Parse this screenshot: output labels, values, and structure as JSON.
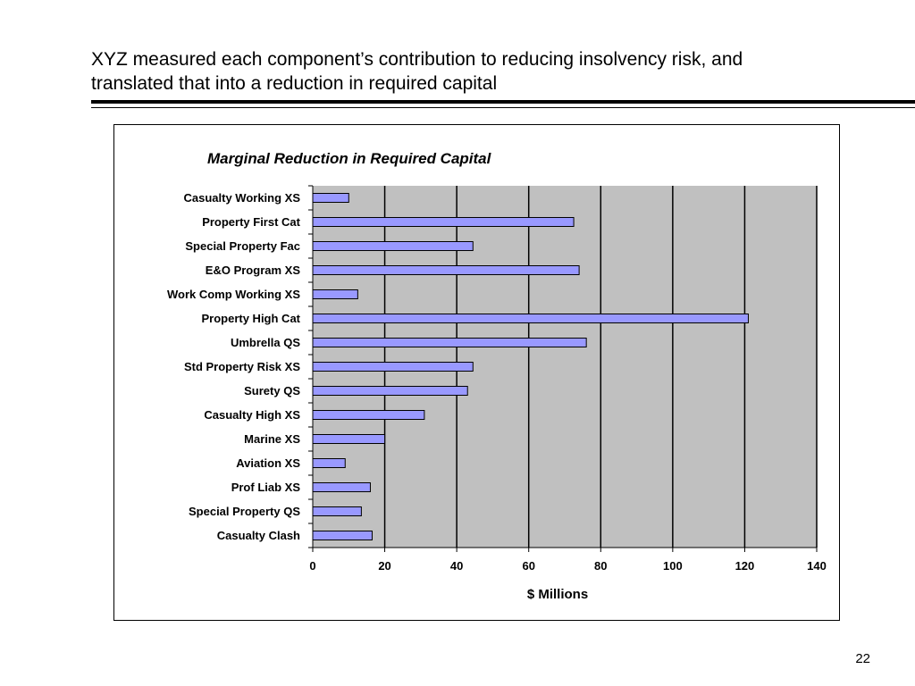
{
  "slide": {
    "title_line1": "XYZ measured each component’s contribution to reducing insolvency risk, and",
    "title_line2": "translated that into a reduction in required capital",
    "page_number": "22"
  },
  "colors": {
    "plot_background": "#c0c0c0",
    "bar_fill": "#9999ff",
    "bar_stroke": "#000000",
    "gridline": "#000000"
  },
  "chart_data": {
    "type": "bar",
    "orientation": "horizontal",
    "title": "Marginal Reduction in Required Capital",
    "xlabel": "$ Millions",
    "ylabel": "",
    "categories": [
      "Casualty Working XS",
      "Property First Cat",
      "Special Property Fac",
      "E&O Program XS",
      "Work Comp Working XS",
      "Property High Cat",
      "Umbrella QS",
      "Std Property Risk XS",
      "Surety QS",
      "Casualty High XS",
      "Marine XS",
      "Aviation XS",
      "Prof Liab XS",
      "Special Property QS",
      "Casualty Clash"
    ],
    "values": [
      10,
      72.5,
      44.5,
      74,
      12.5,
      121,
      76,
      44.5,
      43,
      31,
      20,
      9,
      16,
      13.5,
      16.5
    ],
    "xlim": [
      0,
      140
    ],
    "xticks": [
      0,
      20,
      40,
      60,
      80,
      100,
      120,
      140
    ],
    "grid": "vertical major gridlines",
    "legend": "none"
  }
}
